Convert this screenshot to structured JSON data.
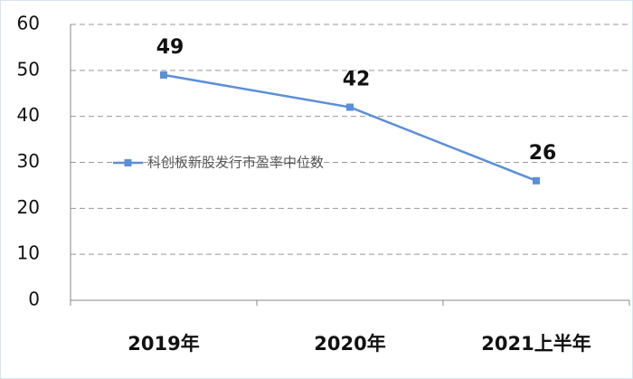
{
  "chart_data": {
    "type": "line",
    "categories": [
      "2019年",
      "2020年",
      "2021上半年"
    ],
    "series": [
      {
        "name": "科创板新股发行市盈率中位数",
        "color": "#5b8fd9",
        "values": [
          49,
          42,
          26
        ]
      }
    ],
    "ylim": [
      0,
      60
    ],
    "yticks": [
      0,
      10,
      20,
      30,
      40,
      50,
      60
    ],
    "grid": true,
    "data_labels": true,
    "legend": "left"
  }
}
